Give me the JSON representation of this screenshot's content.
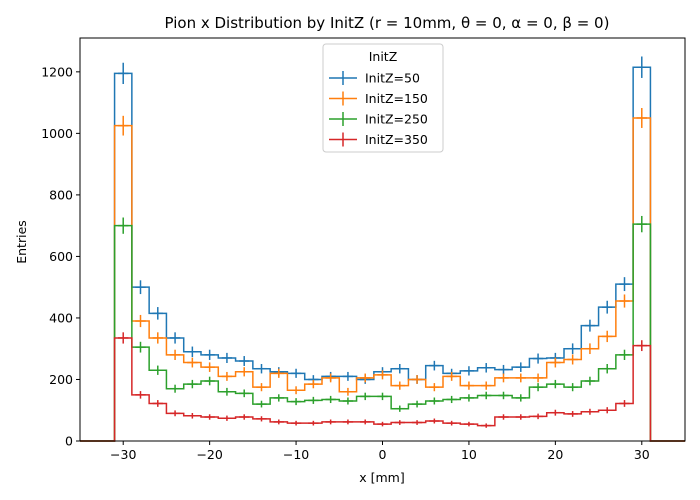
{
  "chart_data": {
    "type": "histogram-step",
    "title": "Pion x Distribution by InitZ (r = 10mm, θ = 0, α = 0, β = 0)",
    "xlabel": "x [mm]",
    "ylabel": "Entries",
    "xlim": [
      -35,
      35
    ],
    "ylim": [
      0,
      1310
    ],
    "xticks": [
      -30,
      -20,
      -10,
      0,
      10,
      20,
      30
    ],
    "yticks": [
      0,
      200,
      400,
      600,
      800,
      1000,
      1200
    ],
    "grid": false,
    "bin_edges": [
      -35,
      -31,
      -29,
      -27,
      -25,
      -23,
      -21,
      -19,
      -17,
      -15,
      -13,
      -11,
      -9,
      -7,
      -5,
      -3,
      -1,
      1,
      3,
      5,
      7,
      9,
      11,
      13,
      15,
      17,
      19,
      21,
      23,
      25,
      27,
      29,
      31,
      35
    ],
    "legend": {
      "title": "InitZ",
      "placement": "upper-center"
    },
    "series": [
      {
        "name": "InitZ=50",
        "color": "#1f77b4",
        "values": [
          0,
          1195,
          500,
          415,
          335,
          290,
          280,
          270,
          260,
          235,
          225,
          220,
          200,
          210,
          210,
          200,
          225,
          235,
          200,
          245,
          220,
          228,
          238,
          232,
          240,
          268,
          270,
          300,
          375,
          435,
          510,
          1215,
          0
        ]
      },
      {
        "name": "InitZ=150",
        "color": "#ff7f0e",
        "values": [
          0,
          1025,
          390,
          335,
          280,
          255,
          240,
          210,
          225,
          175,
          220,
          165,
          185,
          205,
          160,
          205,
          215,
          180,
          200,
          175,
          210,
          180,
          180,
          205,
          205,
          205,
          255,
          265,
          300,
          340,
          455,
          1050,
          0
        ]
      },
      {
        "name": "InitZ=250",
        "color": "#2ca02c",
        "values": [
          0,
          700,
          305,
          230,
          170,
          185,
          195,
          160,
          155,
          120,
          140,
          128,
          132,
          135,
          130,
          145,
          145,
          105,
          120,
          130,
          135,
          140,
          148,
          148,
          140,
          175,
          185,
          175,
          195,
          235,
          280,
          705,
          0
        ]
      },
      {
        "name": "InitZ=350",
        "color": "#d62728",
        "values": [
          0,
          335,
          150,
          122,
          90,
          82,
          78,
          74,
          78,
          72,
          62,
          58,
          58,
          62,
          62,
          62,
          55,
          60,
          60,
          65,
          58,
          55,
          50,
          78,
          78,
          80,
          92,
          88,
          95,
          100,
          122,
          310,
          0
        ]
      }
    ]
  }
}
